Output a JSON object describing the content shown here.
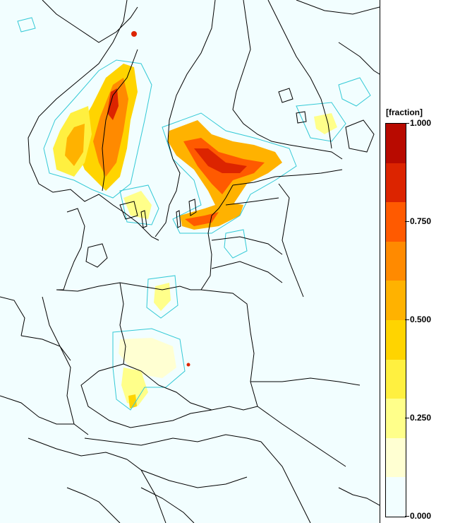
{
  "legend": {
    "title": "[fraction]",
    "labels": [
      "1.000",
      "0.750",
      "0.500",
      "0.250",
      "0.000"
    ],
    "label_values": [
      1.0,
      0.75,
      0.5,
      0.25,
      0.0
    ],
    "colors": [
      "#b80a00",
      "#dc2400",
      "#ff5a00",
      "#ff8a00",
      "#ffb200",
      "#ffd400",
      "#fff040",
      "#ffff8a",
      "#ffffd2",
      "#f2feff"
    ]
  },
  "map": {
    "background_color": "#f2feff",
    "border_color": "#000000",
    "contour_color": "#33c9d6"
  }
}
